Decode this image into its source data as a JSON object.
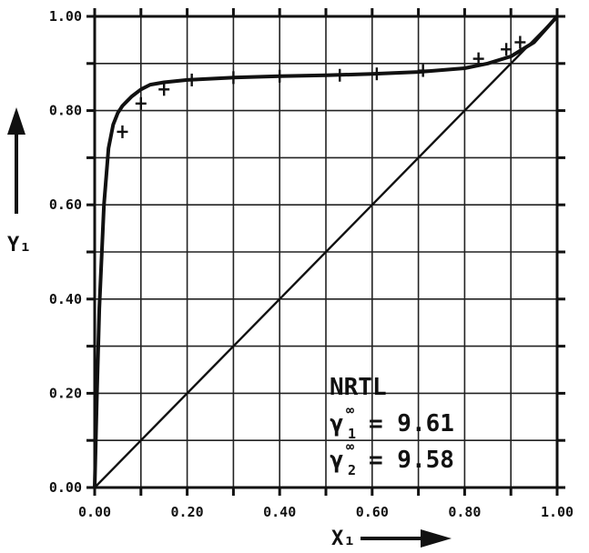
{
  "chart_data": {
    "type": "line",
    "xlabel": "X₁",
    "ylabel": "Y₁",
    "xlim": [
      0,
      1
    ],
    "ylim": [
      0,
      1
    ],
    "grid": true,
    "x_ticks": [
      0.0,
      0.2,
      0.4,
      0.6,
      0.8,
      1.0
    ],
    "y_ticks": [
      0.0,
      0.2,
      0.4,
      0.6,
      0.8,
      1.0
    ],
    "x_tick_labels": [
      "0.00",
      "0.20",
      "0.40",
      "0.60",
      "0.80",
      "1.00"
    ],
    "y_tick_labels": [
      "0.00",
      "0.20",
      "0.40",
      "0.60",
      "0.80",
      "1.00"
    ],
    "series": [
      {
        "style": "line",
        "x": [
          0.0,
          0.005,
          0.01,
          0.02,
          0.03,
          0.04,
          0.05,
          0.06,
          0.07,
          0.08,
          0.1,
          0.12,
          0.15,
          0.2,
          0.3,
          0.4,
          0.5,
          0.6,
          0.7,
          0.8,
          0.85,
          0.9,
          0.95,
          1.0
        ],
        "y": [
          0.0,
          0.2,
          0.38,
          0.6,
          0.72,
          0.77,
          0.795,
          0.81,
          0.82,
          0.83,
          0.845,
          0.855,
          0.86,
          0.865,
          0.87,
          0.873,
          0.875,
          0.878,
          0.882,
          0.89,
          0.9,
          0.915,
          0.945,
          1.0
        ]
      },
      {
        "style": "markers",
        "x": [
          0.06,
          0.1,
          0.15,
          0.21,
          0.3,
          0.4,
          0.53,
          0.61,
          0.71,
          0.83,
          0.89,
          0.92
        ],
        "y": [
          0.755,
          0.815,
          0.845,
          0.865,
          0.87,
          0.873,
          0.875,
          0.878,
          0.885,
          0.91,
          0.93,
          0.945
        ]
      },
      {
        "style": "line",
        "x": [
          0,
          1
        ],
        "y": [
          0,
          1
        ]
      }
    ],
    "annotation": {
      "model": "NRTL",
      "gamma1_label": "γ",
      "gamma1_sup": "∞",
      "gamma1_sub": "1",
      "gamma1_value": "=  9.61",
      "gamma2_label": "γ",
      "gamma2_sup": "∞",
      "gamma2_sub": "2",
      "gamma2_value": "=  9.58"
    }
  }
}
